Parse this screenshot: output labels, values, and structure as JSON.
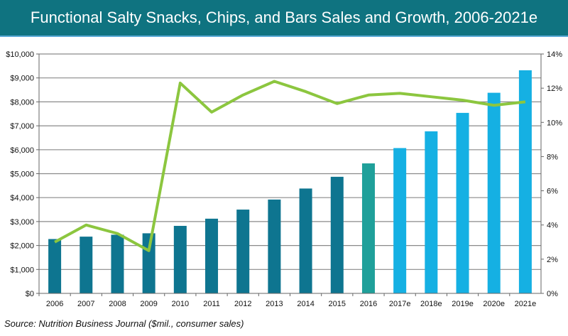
{
  "chart_data": {
    "type": "bar",
    "title": "Functional Salty Snacks, Chips, and Bars Sales and Growth, 2006-2021e",
    "categories": [
      "2006",
      "2007",
      "2008",
      "2009",
      "2010",
      "2011",
      "2012",
      "2013",
      "2014",
      "2015",
      "2016",
      "2017e",
      "2018e",
      "2019e",
      "2020e",
      "2021e"
    ],
    "series": [
      {
        "type": "bar",
        "axis": "left",
        "values": [
          2270,
          2370,
          2450,
          2510,
          2820,
          3120,
          3500,
          3920,
          4380,
          4870,
          5430,
          6070,
          6770,
          7540,
          8380,
          9320
        ]
      },
      {
        "type": "line",
        "axis": "right",
        "values": [
          3.0,
          4.0,
          3.5,
          2.5,
          12.3,
          10.6,
          11.6,
          12.4,
          11.8,
          11.1,
          11.6,
          11.7,
          11.5,
          11.3,
          11.0,
          11.2
        ]
      }
    ],
    "left_axis": {
      "ylim": [
        0,
        10000
      ],
      "ticks": [
        "$0",
        "$1,000",
        "$2,000",
        "$3,000",
        "$4,000",
        "$5,000",
        "$6,000",
        "$7,000",
        "$8,000",
        "$9,000",
        "$10,000"
      ]
    },
    "right_axis": {
      "ylim": [
        0,
        14
      ],
      "ticks": [
        "0%",
        "2%",
        "4%",
        "6%",
        "8%",
        "10%",
        "12%",
        "14%"
      ]
    },
    "grid": true,
    "colors": {
      "historical": "#0e7590",
      "current": "#1fa09a",
      "estimate": "#15b0e3",
      "growth_line": "#8cc63f",
      "banner": "#0f7380"
    },
    "source": "Source: Nutrition Business Journal ($mil., consumer sales)"
  }
}
